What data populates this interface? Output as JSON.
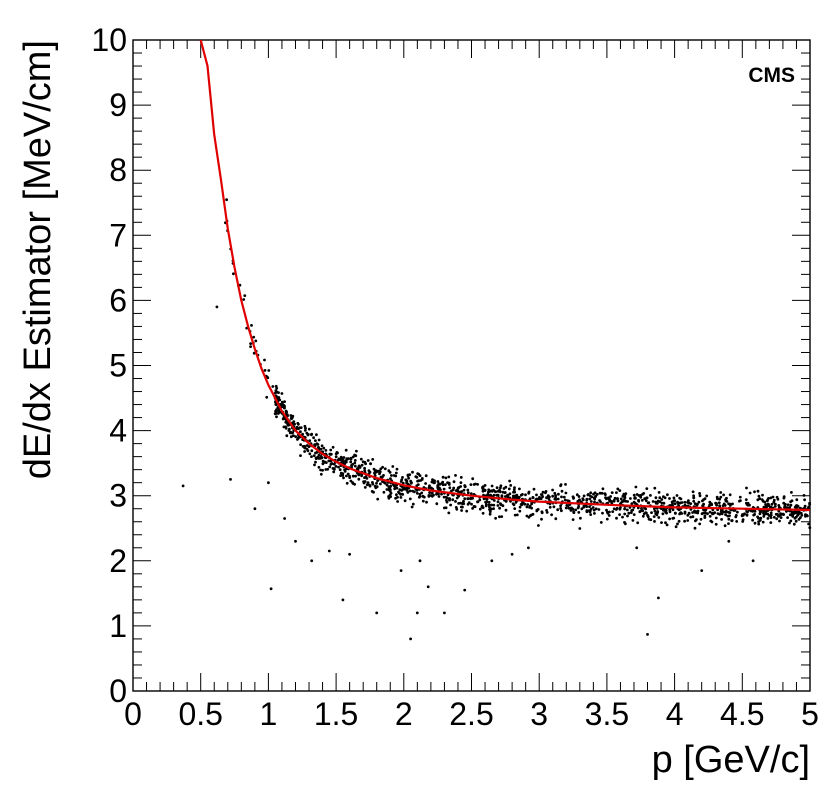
{
  "chart_data": {
    "type": "scatter",
    "title": "",
    "watermark": "CMS",
    "xlabel": "p  [GeV/c]",
    "ylabel": "dE/dx Estimator  [MeV/cm]",
    "xlim": [
      0,
      5
    ],
    "ylim": [
      0,
      10
    ],
    "xticks": [
      "0",
      "0.5",
      "1",
      "1.5",
      "2",
      "2.5",
      "3",
      "3.5",
      "4",
      "4.5",
      "5"
    ],
    "yticks": [
      "0",
      "1",
      "2",
      "3",
      "4",
      "5",
      "6",
      "7",
      "8",
      "9",
      "10"
    ],
    "grid": false,
    "colors": {
      "points": "#000000",
      "fit": "#e00000",
      "axes": "#000000"
    },
    "fit": {
      "name": "",
      "x": [
        0.5,
        0.55,
        0.6,
        0.65,
        0.7,
        0.75,
        0.8,
        0.85,
        0.9,
        0.95,
        1.0,
        1.1,
        1.2,
        1.3,
        1.4,
        1.5,
        1.6,
        1.8,
        2.0,
        2.2,
        2.5,
        2.8,
        3.0,
        3.5,
        4.0,
        4.5,
        5.0
      ],
      "y": [
        10.0,
        9.6,
        8.55,
        7.85,
        7.1,
        6.5,
        6.0,
        5.6,
        5.25,
        4.95,
        4.7,
        4.3,
        4.0,
        3.8,
        3.64,
        3.52,
        3.42,
        3.27,
        3.16,
        3.08,
        3.0,
        2.94,
        2.91,
        2.86,
        2.82,
        2.8,
        2.78
      ]
    },
    "points": {
      "band_description_omitted": true,
      "outliers_x": [
        0.37,
        0.62,
        0.72,
        0.9,
        1.0,
        1.02,
        1.12,
        1.2,
        1.32,
        1.45,
        1.55,
        1.6,
        1.8,
        1.98,
        2.05,
        2.1,
        2.12,
        2.18,
        2.3,
        2.45,
        2.65,
        2.8,
        2.92,
        3.72,
        3.8,
        3.88,
        4.2,
        4.4,
        4.58
      ],
      "outliers_y": [
        3.15,
        5.9,
        3.25,
        2.8,
        3.2,
        1.57,
        2.65,
        2.3,
        2.0,
        2.15,
        1.4,
        2.1,
        1.2,
        1.85,
        0.8,
        1.2,
        2.0,
        1.6,
        1.2,
        1.55,
        2.0,
        2.1,
        2.2,
        2.2,
        0.87,
        1.43,
        1.85,
        2.3,
        2.0
      ]
    }
  }
}
